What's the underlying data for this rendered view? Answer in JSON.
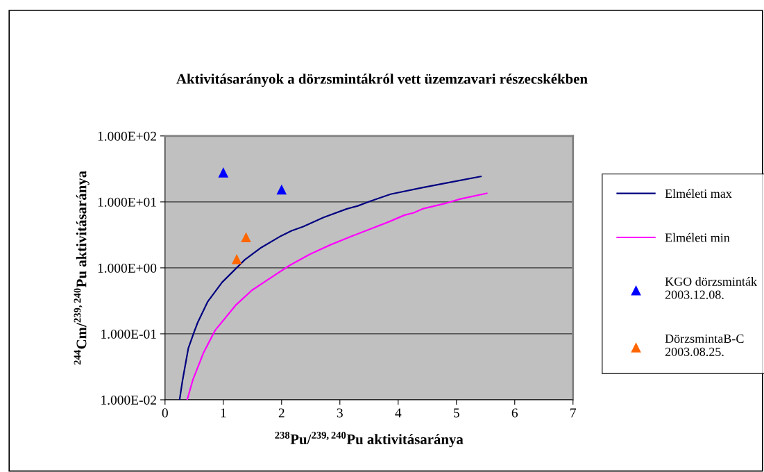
{
  "chart_data": {
    "type": "line",
    "title": "Aktivitásarányok a dörzsmintákról vett üzemzavari részecskékben",
    "xlabel": "$^{238}$Pu/$^{239,240}$Pu aktivitásaránya",
    "ylabel": "$^{244}$Cm/$^{239,240}$Pu aktivitásaránya",
    "log": "y",
    "grid": "y",
    "legend": "right",
    "xlim": [
      0,
      7
    ],
    "xticks": [
      0,
      1,
      2,
      3,
      4,
      5,
      6,
      7
    ],
    "ylim": [
      0.01,
      100
    ],
    "yticks": [
      {
        "value": 0.01,
        "label": "1.000E-02"
      },
      {
        "value": 0.1,
        "label": "1.000E-01"
      },
      {
        "value": 1,
        "label": "1.000E+00"
      },
      {
        "value": 10,
        "label": "1.000E+01"
      },
      {
        "value": 100,
        "label": "1.000E+02"
      }
    ],
    "series": [
      {
        "name": "Elméleti max",
        "color": "#000080",
        "marker": "none",
        "line_style": "solid",
        "x": [
          0.25,
          0.3,
          0.4,
          0.5,
          0.56,
          0.73,
          0.98,
          1.37,
          1.65,
          1.99,
          2.17,
          2.37,
          2.72,
          3.12,
          3.3,
          3.5,
          3.87,
          4.41,
          4.86,
          5.42
        ],
        "values": [
          0.01,
          0.0196,
          0.0605,
          0.107,
          0.148,
          0.305,
          0.605,
          1.33,
          2.03,
          3.05,
          3.64,
          4.22,
          5.82,
          7.85,
          8.65,
          10.1,
          13.1,
          16.4,
          19.6,
          24.3
        ]
      },
      {
        "name": "Elméleti min",
        "color": "#ff00ff",
        "marker": "none",
        "line_style": "solid",
        "x": [
          0.38,
          0.48,
          0.66,
          0.86,
          1.21,
          1.49,
          1.77,
          2.13,
          2.48,
          2.84,
          3.16,
          3.52,
          3.83,
          4.11,
          4.27,
          4.43,
          4.83,
          5.07,
          5.52
        ],
        "values": [
          0.01,
          0.0204,
          0.0515,
          0.113,
          0.27,
          0.457,
          0.667,
          1.08,
          1.6,
          2.24,
          2.92,
          3.88,
          4.95,
          6.31,
          6.84,
          7.91,
          9.6,
          11.1,
          13.5
        ]
      },
      {
        "name": "KGO dörzsminták\n2003.12.08.",
        "type": "scatter",
        "color": "#0000ff",
        "marker": "triangle",
        "x": [
          1.0,
          2.0
        ],
        "values": [
          28,
          15.4
        ]
      },
      {
        "name": "DörzsmintaB-C\n2003.08.25.",
        "type": "scatter",
        "color": "#ff6600",
        "marker": "triangle",
        "x": [
          1.23,
          1.39
        ],
        "values": [
          1.36,
          2.92
        ]
      }
    ]
  }
}
